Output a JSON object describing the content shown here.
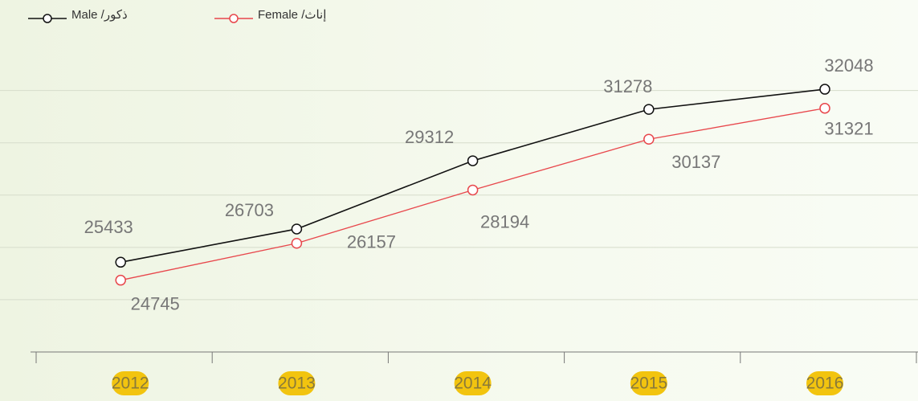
{
  "chart_data": {
    "type": "line",
    "categories": [
      "2012",
      "2013",
      "2014",
      "2015",
      "2016"
    ],
    "series": [
      {
        "name": "ذكور/ Male",
        "color": "#111111",
        "values": [
          25433,
          26703,
          29312,
          31278,
          32048
        ]
      },
      {
        "name": "إناث/ Female",
        "color": "#e8474c",
        "values": [
          24745,
          26157,
          28194,
          30137,
          31321
        ]
      }
    ],
    "ylim": [
      22000,
      35000
    ],
    "yticks": [
      24000,
      26000,
      28000,
      30000,
      32000
    ],
    "grid": true
  }
}
